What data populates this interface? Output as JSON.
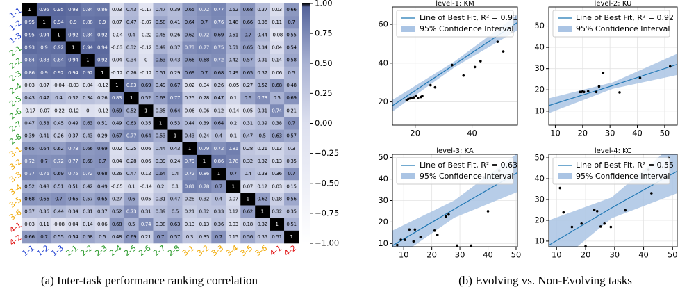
{
  "chart_data": [
    {
      "type": "heatmap",
      "categories": [
        "1-1",
        "1-2",
        "1-3",
        "2-1",
        "2-2",
        "2-3",
        "2-4",
        "2-5",
        "2-6",
        "2-7",
        "2-8",
        "3-1",
        "3-2",
        "3-3",
        "3-4",
        "3-5",
        "3-6",
        "4-1",
        "4-2"
      ],
      "category_colors": [
        "#1f3fd0",
        "#1f3fd0",
        "#1f3fd0",
        "#2a9a2a",
        "#2a9a2a",
        "#2a9a2a",
        "#2a9a2a",
        "#2a9a2a",
        "#2a9a2a",
        "#2a9a2a",
        "#2a9a2a",
        "#f0a800",
        "#f0a800",
        "#f0a800",
        "#f0a800",
        "#f0a800",
        "#f0a800",
        "#e01010",
        "#e01010"
      ],
      "values": [
        [
          1,
          0.95,
          0.95,
          0.93,
          0.84,
          0.86,
          0.03,
          0.43,
          -0.17,
          0.47,
          0.39,
          0.65,
          0.72,
          0.77,
          0.52,
          0.68,
          0.37,
          0.03,
          0.66
        ],
        [
          0.95,
          1,
          0.94,
          0.9,
          0.88,
          0.9,
          0.07,
          0.47,
          -0.07,
          0.58,
          0.41,
          0.64,
          0.7,
          0.76,
          0.48,
          0.66,
          0.36,
          0.11,
          0.7
        ],
        [
          0.95,
          0.94,
          1,
          0.92,
          0.84,
          0.92,
          -0.04,
          0.4,
          -0.22,
          0.45,
          0.26,
          0.62,
          0.72,
          0.69,
          0.51,
          0.7,
          0.44,
          -0.08,
          0.55
        ],
        [
          0.93,
          0.9,
          0.92,
          1,
          0.94,
          0.94,
          -0.03,
          0.32,
          -0.12,
          0.49,
          0.37,
          0.73,
          0.77,
          0.75,
          0.51,
          0.65,
          0.34,
          0.04,
          0.54
        ],
        [
          0.84,
          0.88,
          0.84,
          0.94,
          1,
          0.92,
          0.04,
          0.34,
          0,
          0.63,
          0.43,
          0.66,
          0.68,
          0.72,
          0.42,
          0.57,
          0.31,
          0.14,
          0.58
        ],
        [
          0.86,
          0.9,
          0.92,
          0.94,
          0.92,
          1,
          -0.12,
          0.26,
          -0.12,
          0.51,
          0.29,
          0.69,
          0.7,
          0.68,
          0.49,
          0.65,
          0.37,
          0.06,
          0.5
        ],
        [
          0.03,
          0.07,
          -0.04,
          -0.03,
          0.04,
          -0.12,
          1,
          0.83,
          0.69,
          0.49,
          0.67,
          0.02,
          0.04,
          0.26,
          -0.05,
          0.27,
          0.52,
          0.68,
          0.48
        ],
        [
          0.43,
          0.47,
          0.4,
          0.32,
          0.34,
          0.26,
          0.83,
          1,
          0.52,
          0.63,
          0.77,
          0.25,
          0.28,
          0.47,
          0.1,
          0.6,
          0.73,
          0.5,
          0.69
        ],
        [
          -0.17,
          -0.07,
          -0.22,
          -0.12,
          0,
          -0.12,
          0.69,
          0.52,
          1,
          0.35,
          0.64,
          0.06,
          0.06,
          0.12,
          -0.14,
          0.05,
          0.31,
          0.74,
          0.21
        ],
        [
          0.47,
          0.58,
          0.45,
          0.49,
          0.63,
          0.51,
          0.49,
          0.63,
          0.35,
          1,
          0.53,
          0.44,
          0.39,
          0.64,
          0.2,
          0.31,
          0.39,
          0.38,
          0.7
        ],
        [
          0.39,
          0.41,
          0.26,
          0.37,
          0.43,
          0.29,
          0.67,
          0.77,
          0.64,
          0.53,
          1,
          0.43,
          0.24,
          0.4,
          0.1,
          0.47,
          0.5,
          0.63,
          0.57
        ],
        [
          0.65,
          0.64,
          0.62,
          0.73,
          0.66,
          0.69,
          0.02,
          0.25,
          0.06,
          0.44,
          0.43,
          1,
          0.79,
          0.72,
          0.81,
          0.28,
          0.21,
          0.13,
          0.3
        ],
        [
          0.72,
          0.7,
          0.72,
          0.77,
          0.68,
          0.7,
          0.04,
          0.28,
          0.06,
          0.39,
          0.24,
          0.79,
          1,
          0.86,
          0.78,
          0.32,
          0.32,
          0.13,
          0.35
        ],
        [
          0.77,
          0.76,
          0.69,
          0.75,
          0.72,
          0.68,
          0.26,
          0.47,
          0.12,
          0.64,
          0.4,
          0.72,
          0.86,
          1,
          0.7,
          0.4,
          0.33,
          0.36,
          0.7
        ],
        [
          0.52,
          0.48,
          0.51,
          0.51,
          0.42,
          0.49,
          -0.05,
          0.1,
          -0.14,
          0.2,
          0.1,
          0.81,
          0.78,
          0.7,
          1,
          0.07,
          0.12,
          0.03,
          0.15
        ],
        [
          0.68,
          0.66,
          0.7,
          0.65,
          0.57,
          0.65,
          0.27,
          0.6,
          0.05,
          0.31,
          0.47,
          0.28,
          0.32,
          0.4,
          0.07,
          1,
          0.62,
          0.18,
          0.56
        ],
        [
          0.37,
          0.36,
          0.44,
          0.34,
          0.31,
          0.37,
          0.52,
          0.73,
          0.31,
          0.39,
          0.5,
          0.21,
          0.32,
          0.33,
          0.12,
          0.62,
          1,
          0.32,
          0.35
        ],
        [
          0.03,
          0.11,
          -0.08,
          0.04,
          0.14,
          0.06,
          0.68,
          0.5,
          0.74,
          0.38,
          0.63,
          0.13,
          0.13,
          0.36,
          0.03,
          0.18,
          0.32,
          1,
          0.51
        ],
        [
          0.66,
          0.7,
          0.55,
          0.54,
          0.58,
          0.5,
          0.48,
          0.69,
          0.21,
          0.7,
          0.57,
          0.3,
          0.35,
          0.7,
          0.15,
          0.56,
          0.35,
          0.51,
          1
        ]
      ],
      "colorscale": [
        [
          -1,
          "#ffffff"
        ],
        [
          0,
          "#dde0ef"
        ],
        [
          0.5,
          "#a9b2d3"
        ],
        [
          0.8,
          "#7381b0"
        ],
        [
          0.97,
          "#56649a"
        ],
        [
          1,
          "#000000"
        ]
      ],
      "clim": [
        -1,
        1
      ],
      "cticks": [
        {
          "value": 1,
          "label": "1.00"
        },
        {
          "value": 0.75,
          "label": "0.75"
        },
        {
          "value": 0.5,
          "label": "0.50"
        },
        {
          "value": 0.25,
          "label": "0.25"
        },
        {
          "value": 0,
          "label": "0.00"
        },
        {
          "value": -0.25,
          "label": "−0.25"
        },
        {
          "value": -0.5,
          "label": "−0.50"
        },
        {
          "value": -0.75,
          "label": "−0.75"
        },
        {
          "value": -1,
          "label": "−1.00"
        }
      ]
    },
    {
      "type": "scatter",
      "title": "level-1: KM",
      "legend": [
        "Line of Best Fit, R² = 0.91",
        "95% Confidence Interval"
      ],
      "x": [
        17,
        17.6,
        18.3,
        18.8,
        19.5,
        20.2,
        21,
        22,
        22.5,
        25.4,
        27,
        33,
        37,
        41,
        43,
        49,
        51,
        54
      ],
      "y": [
        21,
        21.5,
        21.8,
        22,
        22.3,
        23,
        22,
        22.5,
        23,
        28.6,
        27.5,
        39,
        33.6,
        38,
        41,
        51,
        46,
        56
      ],
      "fit_x": [
        12,
        34,
        56
      ],
      "fit_y": [
        18,
        39.5,
        61
      ],
      "ci_lower": [
        15,
        38,
        57
      ],
      "ci_upper": [
        21,
        41,
        65
      ],
      "xlim": [
        12,
        56
      ],
      "ylim": [
        8,
        69
      ],
      "xticks": [
        20,
        40
      ],
      "yticks": [
        20,
        40,
        60
      ],
      "color": "#1f77b4",
      "band_color": "#aac4e4",
      "point_color": "#000000",
      "grid": true
    },
    {
      "type": "scatter",
      "title": "level-2: KU",
      "legend": [
        "Line of Best Fit, R² = 0.92",
        "95% Confidence Interval"
      ],
      "x": [
        19,
        19.5,
        20,
        20.5,
        22,
        25,
        26,
        27.5,
        33.5,
        41,
        52
      ],
      "y": [
        19,
        19,
        19.2,
        19,
        19.3,
        19,
        21.6,
        28,
        18.8,
        25.6,
        31
      ],
      "fit_x": [
        7.6,
        31,
        54.6
      ],
      "fit_y": [
        12.6,
        22,
        32
      ],
      "ci_lower": [
        9,
        20.5,
        27
      ],
      "ci_upper": [
        16,
        23.5,
        37
      ],
      "xlim": [
        7.6,
        54.6
      ],
      "ylim": [
        3.4,
        59
      ],
      "xticks": [
        10,
        20,
        30,
        40,
        50
      ],
      "yticks": [
        10,
        20,
        30,
        40,
        50
      ],
      "color": "#1f77b4",
      "band_color": "#aac4e4",
      "point_color": "#000000",
      "grid": true
    },
    {
      "type": "scatter",
      "title": "level-3: KA",
      "legend": [
        "Line of Best Fit, R² = 0.63",
        "95% Confidence Interval"
      ],
      "x": [
        7.7,
        9,
        10.5,
        12,
        13.5,
        14,
        16,
        21,
        22,
        25,
        26,
        29,
        34,
        38.5,
        40,
        44
      ],
      "y": [
        9.3,
        11.7,
        11.7,
        16.5,
        11,
        16.5,
        13,
        16,
        14,
        22.5,
        23.5,
        9,
        9,
        40.8,
        25,
        44
      ],
      "fit_x": [
        6,
        28,
        50.5
      ],
      "fit_y": [
        9,
        26,
        43
      ],
      "ci_lower": [
        2,
        22,
        34
      ],
      "ci_upper": [
        16,
        30,
        52
      ],
      "xlim": [
        6,
        50.5
      ],
      "ylim": [
        8.5,
        51.5
      ],
      "xticks": [
        10,
        20,
        30,
        40,
        50
      ],
      "yticks": [
        10,
        20,
        30,
        40,
        50
      ],
      "color": "#1f77b4",
      "band_color": "#aac4e4",
      "point_color": "#000000",
      "grid": true
    },
    {
      "type": "scatter",
      "title": "level-4: KC",
      "legend": [
        "Line of Best Fit, R² = 0.55",
        "95% Confidence Interval"
      ],
      "x": [
        11.2,
        12.4,
        15.3,
        18.6,
        20,
        23,
        24,
        25.2,
        26.5,
        28.7,
        33.7,
        41.7,
        42.7,
        48.6
      ],
      "y": [
        35.5,
        23.8,
        16.8,
        18.4,
        7.5,
        25,
        24.4,
        17,
        18.4,
        16.8,
        24.8,
        44.3,
        33,
        49.9
      ],
      "fit_x": [
        7.3,
        29,
        51.6
      ],
      "fit_y": [
        8,
        26,
        43.6
      ],
      "ci_lower": [
        -4,
        21,
        33
      ],
      "ci_upper": [
        20,
        31,
        58
      ],
      "xlim": [
        7.3,
        51.6
      ],
      "ylim": [
        7.3,
        51.7
      ],
      "xticks": [
        10,
        20,
        30,
        40,
        50
      ],
      "yticks": [
        10,
        20,
        30,
        40,
        50
      ],
      "color": "#1f77b4",
      "band_color": "#aac4e4",
      "point_color": "#000000",
      "grid": true
    }
  ],
  "captions": [
    "(a) Inter-task performance ranking correlation",
    "(b) Evolving vs. Non-Evolving tasks"
  ]
}
